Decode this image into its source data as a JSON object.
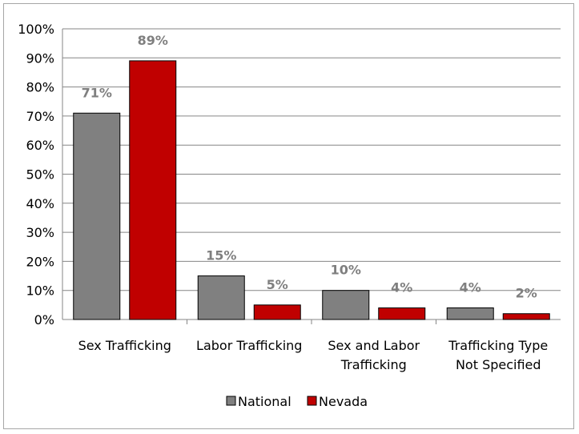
{
  "chart_data": {
    "type": "bar",
    "categories": [
      [
        "Sex Trafficking"
      ],
      [
        "Labor Trafficking"
      ],
      [
        "Sex and Labor",
        "Trafficking"
      ],
      [
        "Trafficking Type",
        "Not Specified"
      ]
    ],
    "series": [
      {
        "name": "National",
        "values": [
          71,
          15,
          10,
          4
        ],
        "labels": [
          "71%",
          "15%",
          "10%",
          "4%"
        ],
        "color": "#808080"
      },
      {
        "name": "Nevada",
        "values": [
          89,
          5,
          4,
          2
        ],
        "labels": [
          "89%",
          "5%",
          "4%",
          "2%"
        ],
        "color": "#c00000"
      }
    ],
    "y_ticks": [
      "0%",
      "10%",
      "20%",
      "30%",
      "40%",
      "50%",
      "60%",
      "70%",
      "80%",
      "90%",
      "100%"
    ],
    "ylim": [
      0,
      100
    ],
    "grid": true,
    "legend_position": "bottom",
    "title": "",
    "xlabel": "",
    "ylabel": ""
  }
}
